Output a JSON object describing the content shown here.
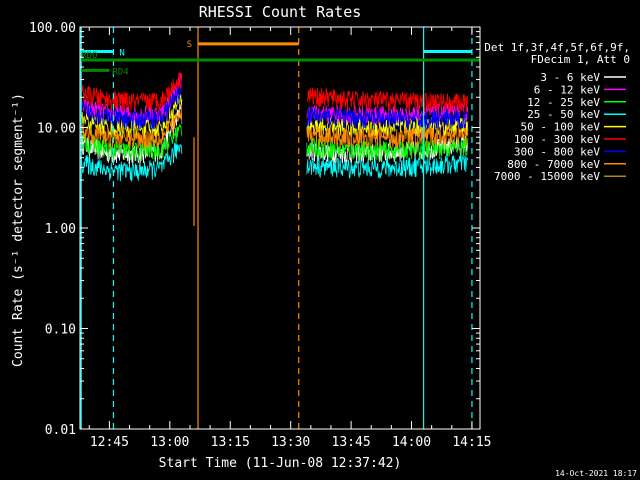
{
  "chart_data": {
    "type": "line",
    "title": "RHESSI Count Rates",
    "xlabel": "Start Time (11-Jun-08 12:37:42)",
    "ylabel": "Count Rate (s⁻¹ detector segment⁻¹)",
    "yscale": "log",
    "ylim": [
      0.01,
      100
    ],
    "xlim": [
      "12:37:42",
      "14:17:00"
    ],
    "x_ticks": [
      "12:45",
      "13:00",
      "13:15",
      "13:30",
      "13:45",
      "14:00",
      "14:15"
    ],
    "y_ticks": [
      "0.01",
      "0.10",
      "1.00",
      "10.00",
      "100.00"
    ],
    "legend_header": [
      "Det 1f,3f,4f,5f,6f,9f,",
      "FDecim 1, Att 0"
    ],
    "legend_position": "right",
    "series": [
      {
        "name": "3 - 6 keV",
        "color": "#ffffff",
        "segments": [
          {
            "x": [
              "12:38",
              "12:45",
              "12:52",
              "12:58",
              "13:03"
            ],
            "y": [
              7.0,
              5.5,
              5.5,
              6.0,
              16.0
            ]
          },
          {
            "x": [
              "13:34",
              "13:45",
              "13:55",
              "14:05",
              "14:14"
            ],
            "y": [
              6.0,
              5.5,
              5.7,
              6.2,
              7.0
            ]
          }
        ]
      },
      {
        "name": "6 - 12 keV",
        "color": "#ff00ff",
        "segments": [
          {
            "x": [
              "12:38",
              "12:45",
              "12:52",
              "12:58",
              "13:03"
            ],
            "y": [
              16,
              14,
              13.5,
              14,
              30
            ]
          },
          {
            "x": [
              "13:34",
              "13:45",
              "13:55",
              "14:05",
              "14:14"
            ],
            "y": [
              14,
              13.5,
              13.5,
              14,
              14
            ]
          }
        ]
      },
      {
        "name": "12 - 25 keV",
        "color": "#00ff00",
        "segments": [
          {
            "x": [
              "12:38",
              "12:45",
              "12:52",
              "12:58",
              "13:03"
            ],
            "y": [
              7.5,
              6.0,
              5.8,
              6.2,
              10
            ]
          },
          {
            "x": [
              "13:34",
              "13:45",
              "13:55",
              "14:05",
              "14:14"
            ],
            "y": [
              6.5,
              6.0,
              6.0,
              6.2,
              6.5
            ]
          }
        ]
      },
      {
        "name": "25 - 50 keV",
        "color": "#00ffff",
        "segments": [
          {
            "x": [
              "12:38",
              "12:45",
              "12:52",
              "12:58",
              "13:03"
            ],
            "y": [
              4.5,
              3.8,
              3.7,
              4.0,
              7
            ]
          },
          {
            "x": [
              "13:34",
              "13:45",
              "13:55",
              "14:05",
              "14:14"
            ],
            "y": [
              4.2,
              4.0,
              4.0,
              4.2,
              4.5
            ]
          }
        ]
      },
      {
        "name": "50 - 100 keV",
        "color": "#ffff00",
        "segments": [
          {
            "x": [
              "12:38",
              "12:45",
              "12:52",
              "12:58",
              "13:03"
            ],
            "y": [
              12,
              10,
              9.8,
              10,
              20
            ]
          },
          {
            "x": [
              "13:34",
              "13:45",
              "13:55",
              "14:05",
              "14:14"
            ],
            "y": [
              10.5,
              10,
              10,
              10.5,
              10.5
            ]
          }
        ]
      },
      {
        "name": "100 - 300 keV",
        "color": "#ff0000",
        "segments": [
          {
            "x": [
              "12:38",
              "12:45",
              "12:52",
              "12:58",
              "13:03"
            ],
            "y": [
              22,
              19,
              18,
              19,
              32
            ]
          },
          {
            "x": [
              "13:34",
              "13:45",
              "13:55",
              "14:05",
              "14:14"
            ],
            "y": [
              21,
              19,
              18.5,
              18.5,
              17.5
            ]
          }
        ]
      },
      {
        "name": "300 - 800 keV",
        "color": "#0000ff",
        "segments": [
          {
            "x": [
              "12:38",
              "12:45",
              "12:52",
              "12:58",
              "13:03"
            ],
            "y": [
              15,
              12.5,
              12,
              12.5,
              25
            ]
          },
          {
            "x": [
              "13:34",
              "13:45",
              "13:55",
              "14:05",
              "14:14"
            ],
            "y": [
              13,
              12.5,
              12,
              12,
              12
            ]
          }
        ]
      },
      {
        "name": "800 - 7000 keV",
        "color": "#ff8c00",
        "segments": [
          {
            "x": [
              "12:38",
              "12:45",
              "12:52",
              "12:58",
              "13:03"
            ],
            "y": [
              9.5,
              8,
              7.8,
              8,
              14
            ]
          },
          {
            "x": [
              "13:34",
              "13:45",
              "13:55",
              "14:05",
              "14:14"
            ],
            "y": [
              8.5,
              8,
              8,
              8.2,
              8.5
            ]
          }
        ]
      },
      {
        "name": "7000 - 15000 keV",
        "color": "#b8860b",
        "segments": []
      }
    ],
    "annotations": [
      {
        "label": "N",
        "color": "#00ffff",
        "start": "12:38",
        "end": "12:46",
        "level": 57
      },
      {
        "label": "",
        "color": "#00ffff",
        "start": "14:03",
        "end": "14:15",
        "level": 57
      },
      {
        "label": "S",
        "color": "#ff8c00",
        "start": "13:07",
        "end": "13:32",
        "level": 68
      },
      {
        "label": "RDO",
        "color": "#008c00",
        "start": "12:38",
        "end": "14:17",
        "level": 47
      },
      {
        "label": "RD4",
        "color": "#008c00",
        "start": "12:38",
        "end": "12:45",
        "level": 37
      }
    ],
    "vertical_lines": [
      {
        "t": "12:38",
        "color": "#00ffff",
        "style": "solid"
      },
      {
        "t": "12:46",
        "color": "#00ffff",
        "style": "dashed"
      },
      {
        "t": "13:07",
        "color": "#ff8c00",
        "style": "solid"
      },
      {
        "t": "13:32",
        "color": "#ff8c00",
        "style": "dashed"
      },
      {
        "t": "14:03",
        "color": "#00ffff",
        "style": "solid"
      },
      {
        "t": "14:15",
        "color": "#00ffff",
        "style": "dashed"
      }
    ],
    "spike": {
      "t": "13:06",
      "y": 1.05,
      "color": "#ff8c00"
    }
  },
  "footer_date": "14-Oct-2021 18:17"
}
